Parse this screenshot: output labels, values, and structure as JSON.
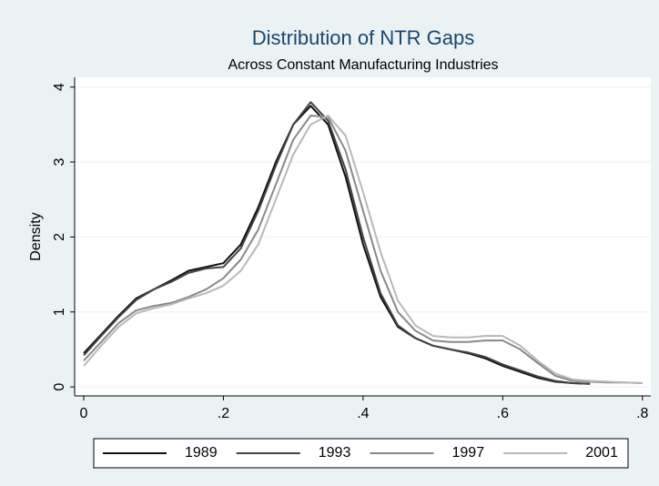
{
  "chart_data": {
    "type": "line",
    "title": "Distribution of NTR Gaps",
    "subtitle": "Across Constant Manufacturing Industries",
    "y_label": "Density",
    "x": [
      0,
      0.025,
      0.05,
      0.075,
      0.1,
      0.125,
      0.15,
      0.175,
      0.2,
      0.225,
      0.25,
      0.275,
      0.3,
      0.325,
      0.35,
      0.375,
      0.4,
      0.425,
      0.45,
      0.475,
      0.5,
      0.525,
      0.55,
      0.575,
      0.6,
      0.625,
      0.65,
      0.675,
      0.7,
      0.725,
      0.75,
      0.775,
      0.8
    ],
    "series": [
      {
        "name": "1989",
        "color": "#111111",
        "values": [
          0.45,
          0.7,
          0.95,
          1.18,
          1.3,
          1.42,
          1.55,
          1.6,
          1.65,
          1.9,
          2.4,
          3.0,
          3.5,
          3.75,
          3.5,
          2.8,
          1.9,
          1.2,
          0.8,
          0.65,
          0.55,
          0.5,
          0.45,
          0.38,
          0.28,
          0.2,
          0.12,
          0.07,
          0.05,
          0.04,
          null,
          null,
          null
        ]
      },
      {
        "name": "1993",
        "color": "#444444",
        "values": [
          0.42,
          0.68,
          0.93,
          1.16,
          1.3,
          1.4,
          1.52,
          1.58,
          1.6,
          1.85,
          2.35,
          2.95,
          3.5,
          3.8,
          3.55,
          2.9,
          2.0,
          1.25,
          0.82,
          0.65,
          0.55,
          0.5,
          0.46,
          0.4,
          0.3,
          0.22,
          0.14,
          0.08,
          0.05,
          0.04,
          null,
          null,
          null
        ]
      },
      {
        "name": "1997",
        "color": "#888888",
        "values": [
          0.35,
          0.6,
          0.85,
          1.02,
          1.08,
          1.12,
          1.2,
          1.3,
          1.45,
          1.7,
          2.1,
          2.7,
          3.3,
          3.62,
          3.6,
          3.15,
          2.35,
          1.55,
          1.0,
          0.75,
          0.62,
          0.6,
          0.6,
          0.62,
          0.62,
          0.5,
          0.32,
          0.15,
          0.08,
          0.07,
          0.06,
          0.06,
          0.05
        ]
      },
      {
        "name": "2001",
        "color": "#b8b8b8",
        "values": [
          0.28,
          0.55,
          0.8,
          0.98,
          1.05,
          1.1,
          1.18,
          1.25,
          1.35,
          1.55,
          1.9,
          2.5,
          3.1,
          3.5,
          3.62,
          3.35,
          2.6,
          1.8,
          1.15,
          0.82,
          0.68,
          0.66,
          0.66,
          0.68,
          0.68,
          0.55,
          0.35,
          0.18,
          0.1,
          0.08,
          0.07,
          0.06,
          0.05
        ]
      }
    ],
    "xlim": [
      -0.013,
      0.812
    ],
    "ylim": [
      -0.12,
      4.13
    ],
    "xticks": [
      0,
      {
        "value": 0.2,
        "label": ".2"
      },
      {
        "value": 0.4,
        "label": ".4"
      },
      {
        "value": 0.6,
        "label": ".6"
      },
      {
        "value": 0.8,
        "label": ".8"
      }
    ],
    "yticks": [
      0,
      1,
      2,
      3,
      4
    ],
    "grid": true
  }
}
